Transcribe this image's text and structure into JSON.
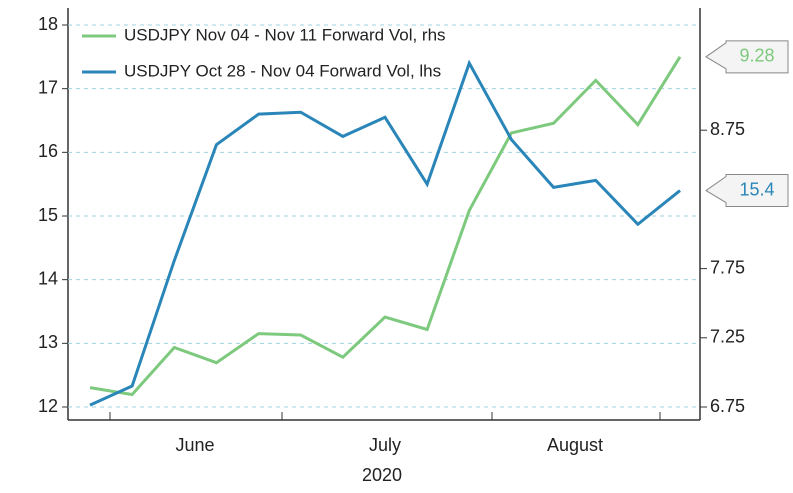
{
  "chart_data": {
    "type": "line",
    "categories": [
      null,
      null,
      null,
      null,
      null,
      null,
      null,
      null,
      null,
      null,
      null,
      null,
      null,
      null,
      null
    ],
    "month_labels": [
      "June",
      "July",
      "August"
    ],
    "xlabel": "2020",
    "series": [
      {
        "name": "USDJPY Nov 04  - Nov 11 Forward Vol, rhs",
        "color": "#7dc97d",
        "axis": "y2",
        "values": [
          6.89,
          6.84,
          7.18,
          7.07,
          7.28,
          7.27,
          7.11,
          7.4,
          7.31,
          8.17,
          8.73,
          8.8,
          9.11,
          8.79,
          9.28
        ]
      },
      {
        "name": "USDJPY Oct 28  - Nov 04 Forward Vol, lhs",
        "color": "#2a86b8",
        "values": [
          12.03,
          12.33,
          14.3,
          16.12,
          16.6,
          16.63,
          16.25,
          16.55,
          15.5,
          17.4,
          16.2,
          15.45,
          15.56,
          14.87,
          15.4
        ]
      }
    ],
    "ylim": [
      12,
      18
    ],
    "yticks": [
      12,
      13,
      14,
      15,
      16,
      17,
      18
    ],
    "y2lim": [
      6.75,
      9.51
    ],
    "y2ticks": [
      6.75,
      7.25,
      7.75,
      8.75
    ],
    "grid": true,
    "legend": "upper left"
  }
}
